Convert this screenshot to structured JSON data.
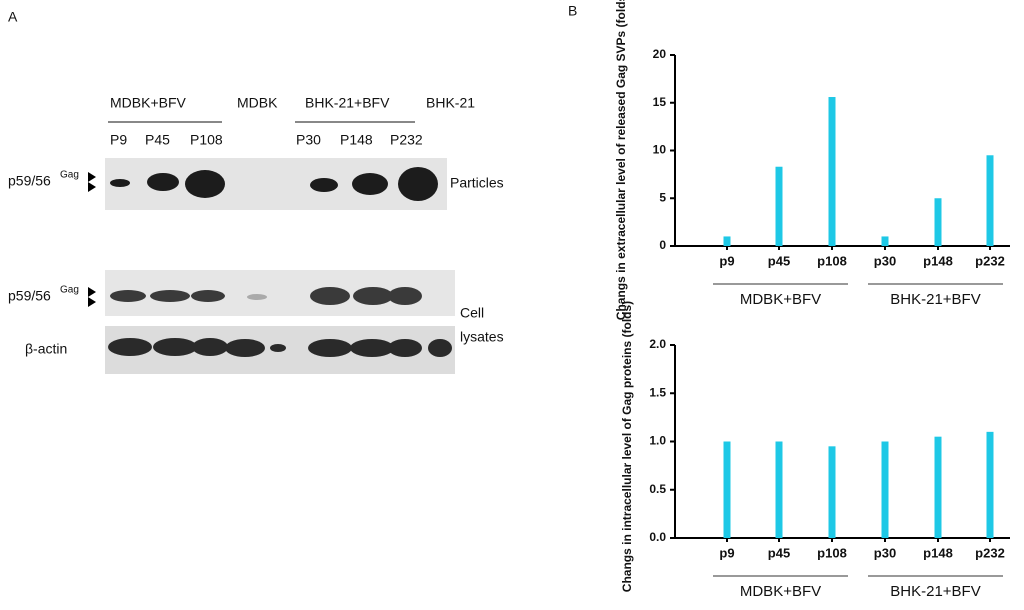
{
  "panel_a": {
    "label": "A",
    "groups": [
      "MDBK+BFV",
      "MDBK",
      "BHK-21+BFV",
      "BHK-21"
    ],
    "lanes": [
      "P9",
      "P45",
      "P108",
      "P30",
      "P148",
      "P232"
    ],
    "marker": "p59/56",
    "marker_sup": "Gag",
    "particles": "Particles",
    "cell": "Cell",
    "lysates": "lysates",
    "actin": "β-actin"
  },
  "panel_b": {
    "label": "B"
  },
  "chart_data": [
    {
      "type": "bar",
      "ylabel": "Changs in extracellular level of released Gag SVPs (folds)",
      "categories": [
        "p9",
        "p45",
        "p108",
        "p30",
        "p148",
        "p232"
      ],
      "values": [
        1,
        8.3,
        15.6,
        1,
        5,
        9.5
      ],
      "color": "#1ec8e6",
      "groups": [
        "MDBK+BFV",
        "BHK-21+BFV"
      ],
      "ylim": [
        0,
        20
      ],
      "yticks": [
        0,
        5,
        10,
        15,
        20
      ]
    },
    {
      "type": "bar",
      "ylabel": "Changs in intracellular level of Gag proteins (folds)",
      "categories": [
        "p9",
        "p45",
        "p108",
        "p30",
        "p148",
        "p232"
      ],
      "values": [
        1.0,
        1.0,
        0.95,
        1.0,
        1.05,
        1.1
      ],
      "color": "#1ec8e6",
      "groups": [
        "MDBK+BFV",
        "BHK-21+BFV"
      ],
      "ylim": [
        0,
        2
      ],
      "yticks": [
        {
          "value": 0,
          "label": "0.0"
        },
        0.5,
        {
          "value": 1,
          "label": "1.0"
        },
        1.5,
        {
          "value": 2,
          "label": "2.0"
        }
      ]
    }
  ]
}
